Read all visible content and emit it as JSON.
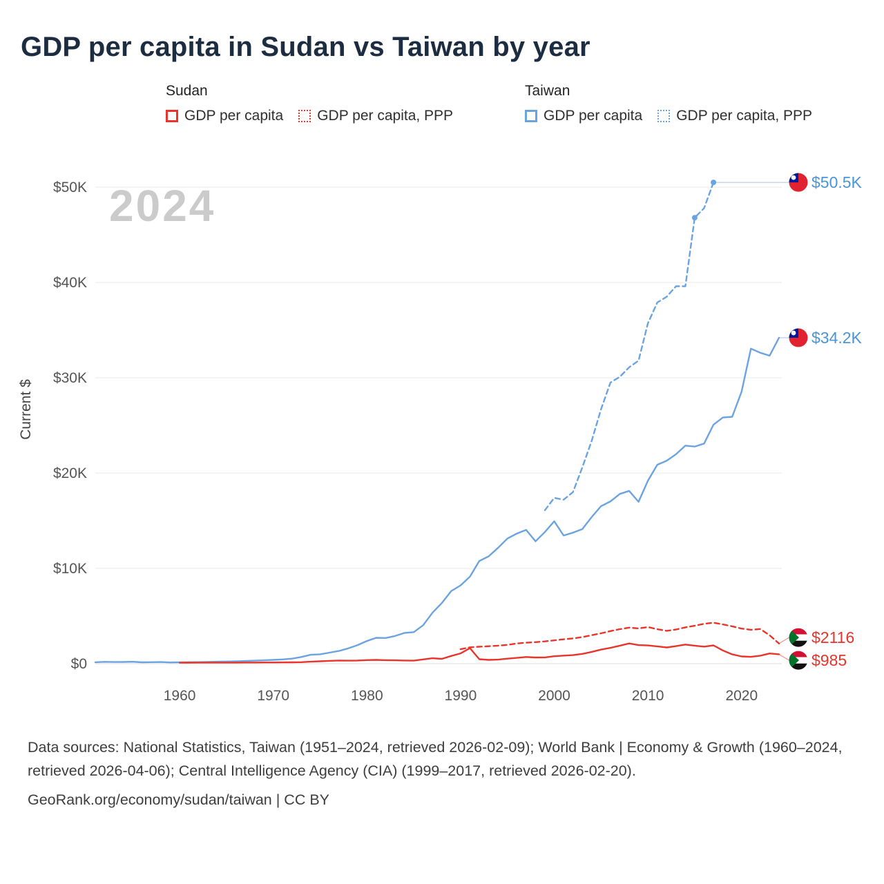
{
  "page": {
    "title": "GDP per capita in Sudan vs Taiwan by year",
    "footer": {
      "sources": "Data sources: National Statistics, Taiwan (1951–2024, retrieved 2026-02-09); World Bank | Economy & Growth (1960–2024, retrieved 2026-04-06); Central Intelligence Agency (CIA) (1999–2017, retrieved 2026-02-20).",
      "attribution": "GeoRank.org/economy/sudan/taiwan | CC BY"
    }
  },
  "legend": {
    "groups": [
      {
        "label": "Sudan",
        "items": [
          {
            "label": "GDP per capita",
            "style": "solid",
            "color": "#e8342a"
          },
          {
            "label": "GDP per capita, PPP",
            "style": "dotted",
            "color": "#e8342a"
          }
        ]
      },
      {
        "label": "Taiwan",
        "items": [
          {
            "label": "GDP per capita",
            "style": "solid",
            "color": "#6ba3e0"
          },
          {
            "label": "GDP per capita, PPP",
            "style": "dotted",
            "color": "#6ba3e0"
          }
        ]
      }
    ]
  },
  "chart_data": {
    "type": "line",
    "title": "GDP per capita in Sudan vs Taiwan by year",
    "xlabel": "",
    "ylabel": "Current $",
    "watermark": "2024",
    "grid": true,
    "xlim": [
      1951,
      2024
    ],
    "ylim": [
      0,
      50000
    ],
    "xticks": [
      1960,
      1970,
      1980,
      1990,
      2000,
      2010,
      2020
    ],
    "yticks": [
      0,
      10000,
      20000,
      30000,
      40000,
      50000
    ],
    "ytick_labels": [
      "$0",
      "$10K",
      "$20K",
      "$30K",
      "$40K",
      "$50K"
    ],
    "series": [
      {
        "id": "taiwan-gdp-ppp",
        "name": "Taiwan GDP per capita, PPP",
        "color": "#6ba3e0",
        "label_color": "#4a94d9",
        "dash": "dashed",
        "flag": "taiwan",
        "end_label": "$50.5K",
        "label_value": 50500,
        "markers": [
          [
            2015,
            46800
          ],
          [
            2017,
            50500
          ]
        ],
        "points": [
          [
            1999,
            16100
          ],
          [
            2000,
            17400
          ],
          [
            2001,
            17200
          ],
          [
            2002,
            18000
          ],
          [
            2003,
            20600
          ],
          [
            2004,
            23400
          ],
          [
            2005,
            26700
          ],
          [
            2006,
            29500
          ],
          [
            2007,
            30100
          ],
          [
            2008,
            31100
          ],
          [
            2009,
            31800
          ],
          [
            2010,
            35700
          ],
          [
            2011,
            37900
          ],
          [
            2012,
            38500
          ],
          [
            2013,
            39600
          ],
          [
            2014,
            39600
          ],
          [
            2015,
            46800
          ],
          [
            2016,
            47800
          ],
          [
            2017,
            50500
          ]
        ]
      },
      {
        "id": "taiwan-gdp",
        "name": "Taiwan GDP per capita",
        "color": "#6ba3e0",
        "label_color": "#4a94d9",
        "dash": "solid",
        "flag": "taiwan",
        "end_label": "$34.2K",
        "label_value": 34200,
        "points": [
          [
            1951,
            154
          ],
          [
            1952,
            196
          ],
          [
            1953,
            176
          ],
          [
            1954,
            182
          ],
          [
            1955,
            203
          ],
          [
            1956,
            143
          ],
          [
            1957,
            160
          ],
          [
            1958,
            173
          ],
          [
            1959,
            131
          ],
          [
            1960,
            154
          ],
          [
            1961,
            160
          ],
          [
            1962,
            170
          ],
          [
            1963,
            187
          ],
          [
            1964,
            212
          ],
          [
            1965,
            229
          ],
          [
            1966,
            245
          ],
          [
            1967,
            281
          ],
          [
            1968,
            320
          ],
          [
            1969,
            358
          ],
          [
            1970,
            397
          ],
          [
            1971,
            451
          ],
          [
            1972,
            530
          ],
          [
            1973,
            706
          ],
          [
            1974,
            934
          ],
          [
            1975,
            985
          ],
          [
            1976,
            1158
          ],
          [
            1977,
            1330
          ],
          [
            1978,
            1606
          ],
          [
            1979,
            1950
          ],
          [
            1980,
            2385
          ],
          [
            1981,
            2720
          ],
          [
            1982,
            2699
          ],
          [
            1983,
            2903
          ],
          [
            1984,
            3224
          ],
          [
            1985,
            3314
          ],
          [
            1986,
            4036
          ],
          [
            1987,
            5350
          ],
          [
            1988,
            6370
          ],
          [
            1989,
            7613
          ],
          [
            1990,
            8216
          ],
          [
            1991,
            9136
          ],
          [
            1992,
            10778
          ],
          [
            1993,
            11271
          ],
          [
            1994,
            12160
          ],
          [
            1995,
            13129
          ],
          [
            1996,
            13650
          ],
          [
            1997,
            14040
          ],
          [
            1998,
            12840
          ],
          [
            1999,
            13819
          ],
          [
            2000,
            14941
          ],
          [
            2001,
            13448
          ],
          [
            2002,
            13750
          ],
          [
            2003,
            14120
          ],
          [
            2004,
            15388
          ],
          [
            2005,
            16532
          ],
          [
            2006,
            17026
          ],
          [
            2007,
            17814
          ],
          [
            2008,
            18131
          ],
          [
            2009,
            16988
          ],
          [
            2010,
            19197
          ],
          [
            2011,
            20866
          ],
          [
            2012,
            21295
          ],
          [
            2013,
            21973
          ],
          [
            2014,
            22874
          ],
          [
            2015,
            22780
          ],
          [
            2016,
            23091
          ],
          [
            2017,
            25080
          ],
          [
            2018,
            25826
          ],
          [
            2019,
            25908
          ],
          [
            2020,
            28549
          ],
          [
            2021,
            33059
          ],
          [
            2022,
            32625
          ],
          [
            2023,
            32319
          ],
          [
            2024,
            34200
          ]
        ]
      },
      {
        "id": "sudan-gdp-ppp",
        "name": "Sudan GDP per capita, PPP",
        "color": "#e8342a",
        "label_color": "#e8342a",
        "dash": "dashed",
        "flag": "sudan",
        "end_label": "$2116",
        "label_value": 2116,
        "points": [
          [
            1990,
            1520
          ],
          [
            1991,
            1720
          ],
          [
            1992,
            1780
          ],
          [
            1993,
            1830
          ],
          [
            1994,
            1890
          ],
          [
            1995,
            1980
          ],
          [
            1996,
            2120
          ],
          [
            1997,
            2200
          ],
          [
            1998,
            2260
          ],
          [
            1999,
            2340
          ],
          [
            2000,
            2450
          ],
          [
            2001,
            2560
          ],
          [
            2002,
            2650
          ],
          [
            2003,
            2790
          ],
          [
            2004,
            2990
          ],
          [
            2005,
            3190
          ],
          [
            2006,
            3420
          ],
          [
            2007,
            3620
          ],
          [
            2008,
            3780
          ],
          [
            2009,
            3700
          ],
          [
            2010,
            3840
          ],
          [
            2011,
            3620
          ],
          [
            2012,
            3450
          ],
          [
            2013,
            3590
          ],
          [
            2014,
            3810
          ],
          [
            2015,
            3980
          ],
          [
            2016,
            4190
          ],
          [
            2017,
            4300
          ],
          [
            2018,
            4120
          ],
          [
            2019,
            3920
          ],
          [
            2020,
            3680
          ],
          [
            2021,
            3560
          ],
          [
            2022,
            3640
          ],
          [
            2023,
            2980
          ],
          [
            2024,
            2116
          ]
        ]
      },
      {
        "id": "sudan-gdp",
        "name": "Sudan GDP per capita",
        "color": "#e8342a",
        "label_color": "#e8342a",
        "dash": "solid",
        "flag": "sudan",
        "end_label": "$985",
        "label_value": 985,
        "points": [
          [
            1960,
            104
          ],
          [
            1961,
            109
          ],
          [
            1962,
            113
          ],
          [
            1963,
            115
          ],
          [
            1964,
            114
          ],
          [
            1965,
            119
          ],
          [
            1966,
            116
          ],
          [
            1967,
            122
          ],
          [
            1968,
            125
          ],
          [
            1969,
            128
          ],
          [
            1970,
            133
          ],
          [
            1971,
            140
          ],
          [
            1972,
            148
          ],
          [
            1973,
            163
          ],
          [
            1974,
            213
          ],
          [
            1975,
            255
          ],
          [
            1976,
            300
          ],
          [
            1977,
            330
          ],
          [
            1978,
            322
          ],
          [
            1979,
            330
          ],
          [
            1980,
            374
          ],
          [
            1981,
            398
          ],
          [
            1982,
            368
          ],
          [
            1983,
            355
          ],
          [
            1984,
            330
          ],
          [
            1985,
            320
          ],
          [
            1986,
            450
          ],
          [
            1987,
            570
          ],
          [
            1988,
            510
          ],
          [
            1989,
            810
          ],
          [
            1990,
            1080
          ],
          [
            1991,
            1630
          ],
          [
            1992,
            470
          ],
          [
            1993,
            400
          ],
          [
            1994,
            430
          ],
          [
            1995,
            530
          ],
          [
            1996,
            610
          ],
          [
            1997,
            700
          ],
          [
            1998,
            650
          ],
          [
            1999,
            660
          ],
          [
            2000,
            780
          ],
          [
            2001,
            850
          ],
          [
            2002,
            900
          ],
          [
            2003,
            1030
          ],
          [
            2004,
            1240
          ],
          [
            2005,
            1480
          ],
          [
            2006,
            1660
          ],
          [
            2007,
            1890
          ],
          [
            2008,
            2120
          ],
          [
            2009,
            1950
          ],
          [
            2010,
            1910
          ],
          [
            2011,
            1820
          ],
          [
            2012,
            1700
          ],
          [
            2013,
            1840
          ],
          [
            2014,
            2010
          ],
          [
            2015,
            1890
          ],
          [
            2016,
            1790
          ],
          [
            2017,
            1920
          ],
          [
            2018,
            1390
          ],
          [
            2019,
            980
          ],
          [
            2020,
            760
          ],
          [
            2021,
            720
          ],
          [
            2022,
            840
          ],
          [
            2023,
            1070
          ],
          [
            2024,
            985
          ]
        ]
      }
    ]
  }
}
